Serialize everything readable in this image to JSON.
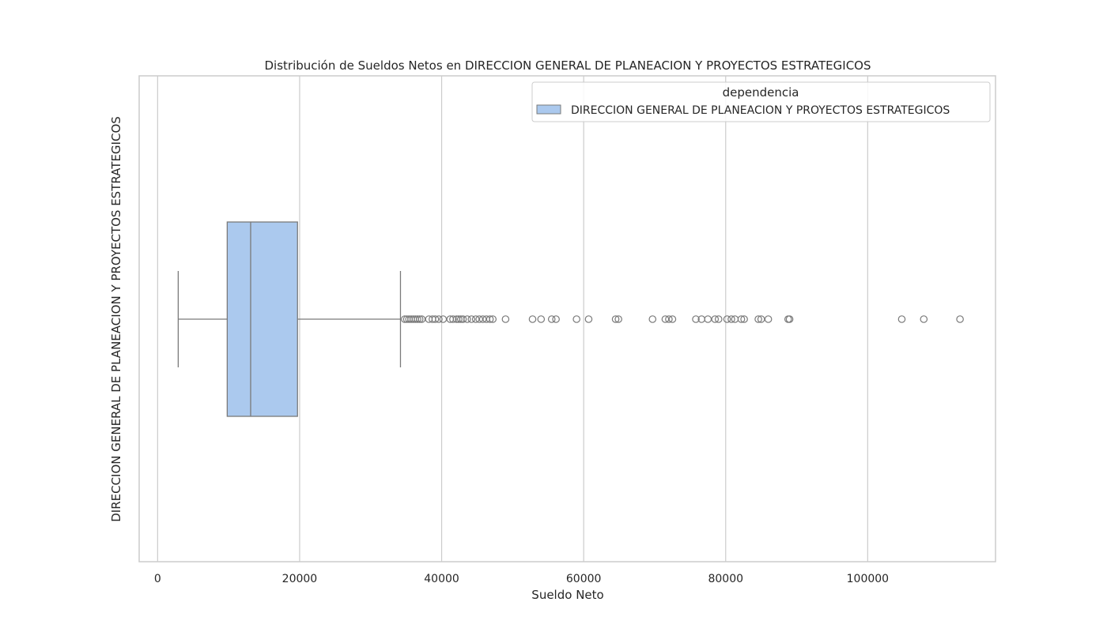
{
  "chart_data": {
    "type": "boxplot",
    "orientation": "horizontal",
    "title": "Distribución de Sueldos Netos en DIRECCION GENERAL DE PLANEACION Y PROYECTOS ESTRATEGICOS",
    "xlabel": "Sueldo Neto",
    "ylabel": "DIRECCION GENERAL DE PLANEACION Y PROYECTOS ESTRATEGICOS",
    "xlim": [
      -2600,
      118000
    ],
    "xticks": [
      0,
      20000,
      40000,
      60000,
      80000,
      100000
    ],
    "xtick_labels": [
      "0",
      "20000",
      "40000",
      "60000",
      "80000",
      "100000"
    ],
    "grid": true,
    "legend": {
      "title": "dependencia",
      "placement": "top-right",
      "entries": [
        {
          "label": "DIRECCION GENERAL DE PLANEACION Y PROYECTOS ESTRATEGICOS",
          "color": "#abc9ee"
        }
      ]
    },
    "box": {
      "category": "DIRECCION GENERAL DE PLANEACION Y PROYECTOS ESTRATEGICOS",
      "whisker_low": 2900,
      "q1": 9800,
      "median": 13100,
      "q3": 19700,
      "whisker_high": 34200,
      "fill": "#abc9ee",
      "edge": "#7a7a7a"
    },
    "outliers": [
      34800,
      35100,
      35400,
      35700,
      36000,
      36300,
      36600,
      36900,
      37200,
      38200,
      38700,
      39100,
      39600,
      40200,
      41200,
      41600,
      42100,
      42400,
      42700,
      43000,
      43600,
      44200,
      44800,
      45300,
      45800,
      46300,
      46800,
      47200,
      49000,
      52800,
      54000,
      55500,
      56100,
      59000,
      60700,
      64500,
      64900,
      69700,
      71500,
      72000,
      72500,
      75800,
      76600,
      77500,
      78500,
      79000,
      80200,
      80800,
      81300,
      82200,
      82600,
      84600,
      85000,
      86000,
      88800,
      89000,
      104800,
      107900,
      113000
    ]
  }
}
